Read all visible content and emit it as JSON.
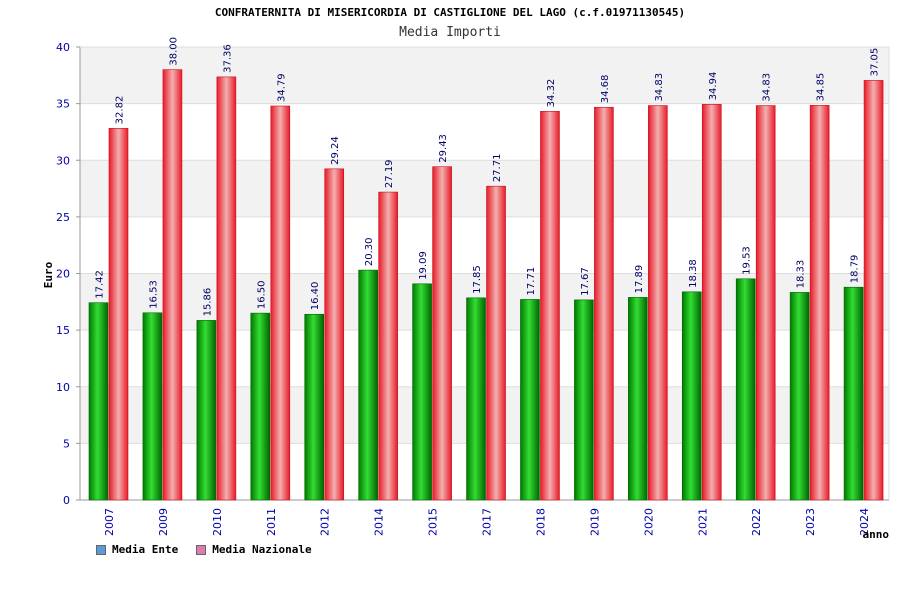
{
  "chart_data": {
    "type": "bar",
    "title": "CONFRATERNITA DI MISERICORDIA DI CASTIGLIONE DEL LAGO (c.f.01971130545)",
    "subtitle": "Media Importi",
    "ylabel": "Euro",
    "xlabel": "anno",
    "ylim": [
      0,
      40
    ],
    "yticks": [
      0,
      5,
      10,
      15,
      20,
      25,
      30,
      35,
      40
    ],
    "grid": true,
    "legend_position": "bottom-left",
    "categories": [
      "2007",
      "2009",
      "2010",
      "2011",
      "2012",
      "2014",
      "2015",
      "2017",
      "2018",
      "2019",
      "2020",
      "2021",
      "2022",
      "2023",
      "2024"
    ],
    "series": [
      {
        "name": "Media Ente",
        "legend_color": "#5b9bd5",
        "bar_color": "#00aa00",
        "values": [
          17.42,
          16.53,
          15.86,
          16.5,
          16.4,
          20.3,
          19.09,
          17.85,
          17.71,
          17.67,
          17.89,
          18.38,
          19.53,
          18.33,
          18.79
        ],
        "labels": [
          "17.42",
          "16.53",
          "15.86",
          "16.50",
          "16.40",
          "20.30",
          "19.09",
          "17.85",
          "17.71",
          "17.67",
          "17.89",
          "18.38",
          "19.53",
          "18.33",
          "18.79"
        ]
      },
      {
        "name": "Media Nazionale",
        "legend_color": "#e07bb0",
        "bar_color": "#e8222e",
        "values": [
          32.82,
          38.0,
          37.36,
          34.79,
          29.24,
          27.19,
          29.43,
          27.71,
          34.32,
          34.68,
          34.83,
          34.94,
          34.83,
          34.85,
          37.05
        ],
        "labels": [
          "32.82",
          "38.00",
          "37.36",
          "34.79",
          "29.24",
          "27.19",
          "29.43",
          "27.71",
          "34.32",
          "34.68",
          "34.83",
          "34.94",
          "34.83",
          "34.85",
          "37.05"
        ]
      }
    ]
  }
}
